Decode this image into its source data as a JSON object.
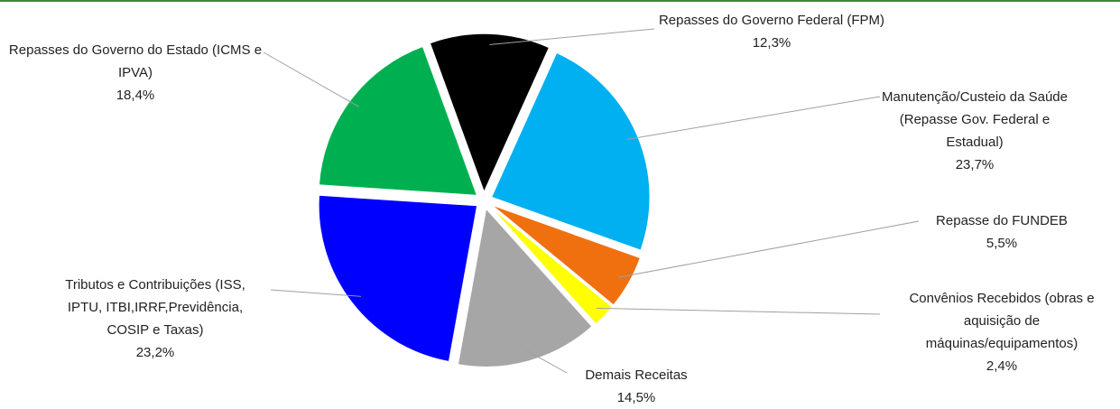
{
  "chart_data": {
    "type": "pie",
    "categories": [
      "Repasses do Governo Federal (FPM)",
      "Manutenção/Custeio da Saúde (Repasse Gov. Federal e Estadual)",
      "Repasse do FUNDEB",
      "Convênios Recebidos (obras e aquisição de máquinas/equipamentos)",
      "Demais Receitas",
      "Tributos e Contribuições (ISS, IPTU, ITBI,IRRF,Previdência, COSIP e Taxas)",
      "Repasses do Governo do Estado (ICMS e IPVA)"
    ],
    "values": [
      12.3,
      23.7,
      5.5,
      2.4,
      14.5,
      23.2,
      18.4
    ],
    "value_labels": [
      "12,3%",
      "23,7%",
      "5,5%",
      "2,4%",
      "14,5%",
      "23,2%",
      "18,4%"
    ],
    "colors": [
      "#000000",
      "#00b0f0",
      "#f07010",
      "#ffff00",
      "#a6a6a6",
      "#0000ff",
      "#00b050"
    ]
  }
}
